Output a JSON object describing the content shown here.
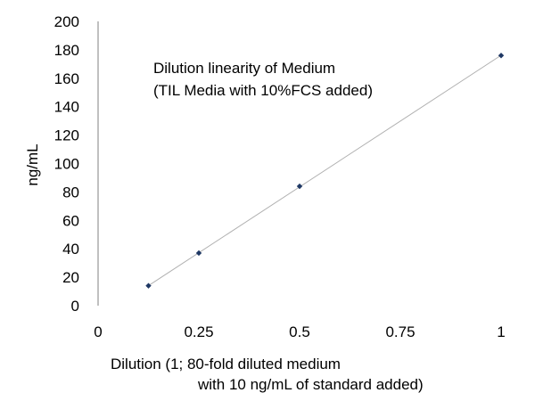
{
  "chart_data": {
    "type": "scatter",
    "x": [
      0.125,
      0.25,
      0.5,
      1
    ],
    "y": [
      14,
      37,
      84,
      176
    ],
    "trendline": true,
    "annotation": [
      "Dilution linearity of Medium",
      "(TIL Media with 10%FCS added)"
    ],
    "xlabel": [
      "Dilution (1; 80-fold diluted medium",
      "with 10 ng/mL of standard added)"
    ],
    "ylabel": "ng/mL",
    "xlim": [
      0,
      1
    ],
    "ylim": [
      0,
      200
    ],
    "xticks": [
      "0",
      "0.25",
      "0.5",
      "0.75",
      "1"
    ],
    "yticks": [
      "0",
      "20",
      "40",
      "60",
      "80",
      "100",
      "120",
      "140",
      "160",
      "180",
      "200"
    ],
    "grid": false,
    "legend": "none"
  },
  "colors": {
    "marker": "#1f3864",
    "trendline": "#b0b0b0",
    "axis": "#808080"
  }
}
